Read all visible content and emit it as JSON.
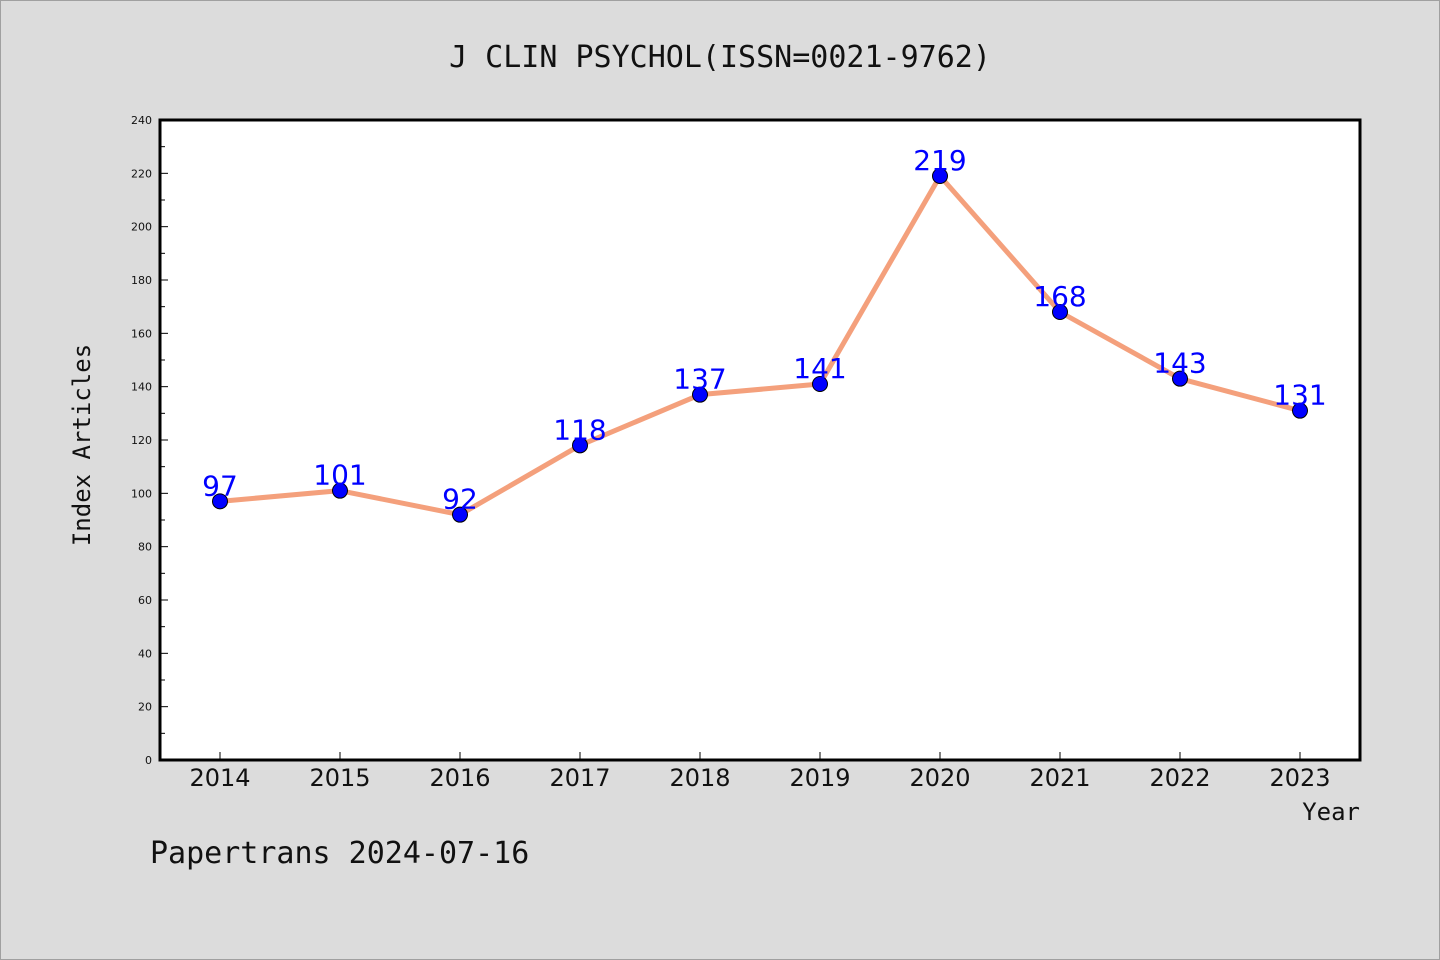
{
  "chart_data": {
    "type": "line",
    "title": "J CLIN PSYCHOL(ISSN=0021-9762)",
    "xlabel": "Year",
    "ylabel": "Index Articles",
    "categories": [
      "2014",
      "2015",
      "2016",
      "2017",
      "2018",
      "2019",
      "2020",
      "2021",
      "2022",
      "2023"
    ],
    "series": [
      {
        "values": [
          97,
          101,
          92,
          118,
          137,
          141,
          219,
          168,
          143,
          131
        ]
      }
    ],
    "ylim": [
      0,
      240
    ],
    "yticks": [
      0,
      20,
      40,
      60,
      80,
      100,
      120,
      140,
      160,
      180,
      200,
      220,
      240
    ],
    "grid": false,
    "legend": "none",
    "line_color": "#f4a07c",
    "marker_color": "#0000ff",
    "label_color": "#0000ff"
  },
  "footer": {
    "text": "Papertrans 2024-07-16"
  }
}
